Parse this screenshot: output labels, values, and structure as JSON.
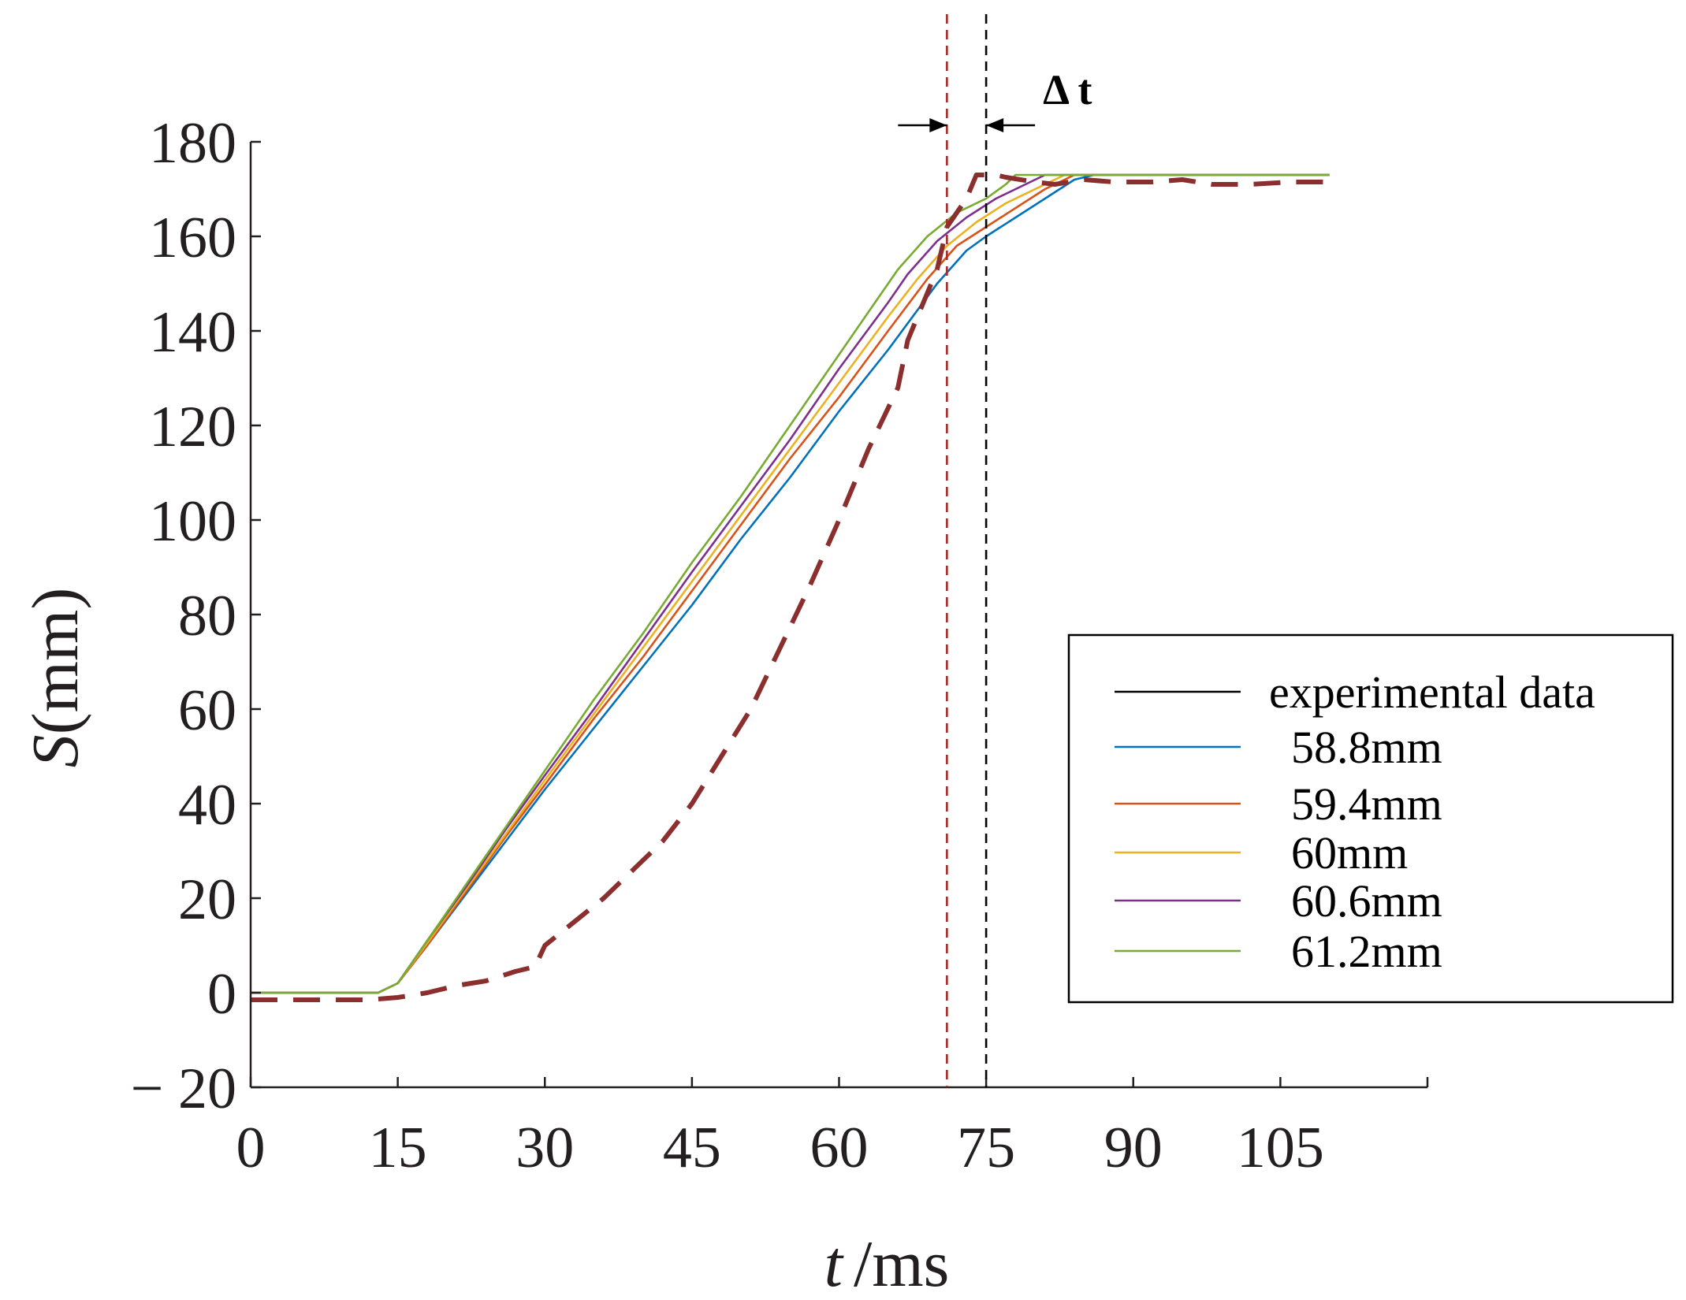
{
  "chart_data": {
    "type": "line",
    "title": "",
    "xlabel_var": "t",
    "xlabel_unit": "/ms",
    "ylabel_var": "S",
    "ylabel_unit": "(mm)",
    "xlim": [
      0,
      120
    ],
    "ylim": [
      -20,
      180
    ],
    "xticks": [
      0,
      15,
      30,
      45,
      60,
      75,
      90,
      105
    ],
    "yticks": [
      -20,
      0,
      20,
      40,
      60,
      80,
      100,
      120,
      140,
      160,
      180
    ],
    "ytick_labels": [
      "− 20",
      "0",
      "20",
      "40",
      "60",
      "80",
      "100",
      "120",
      "140",
      "160",
      "180"
    ],
    "legend_position": "right",
    "series": [
      {
        "name": "experimental data",
        "color": "#8b2e2e",
        "style": "dashed",
        "points": [
          [
            0,
            -1.5
          ],
          [
            6,
            -1.5
          ],
          [
            12,
            -1.5
          ],
          [
            15,
            -1
          ],
          [
            18,
            0
          ],
          [
            21,
            1.5
          ],
          [
            24,
            2.5
          ],
          [
            27,
            4.5
          ],
          [
            29,
            5.5
          ],
          [
            30,
            10
          ],
          [
            33,
            15
          ],
          [
            36,
            20
          ],
          [
            39,
            26
          ],
          [
            42,
            32
          ],
          [
            45,
            40
          ],
          [
            48,
            50
          ],
          [
            51,
            60
          ],
          [
            54,
            73
          ],
          [
            57,
            86
          ],
          [
            60,
            100
          ],
          [
            63,
            115
          ],
          [
            66,
            128
          ],
          [
            67,
            138
          ],
          [
            68,
            143
          ],
          [
            69,
            148
          ],
          [
            70,
            153
          ],
          [
            71,
            162
          ],
          [
            72,
            165
          ],
          [
            73,
            168
          ],
          [
            74,
            173
          ],
          [
            75,
            173
          ],
          [
            76,
            173
          ],
          [
            77,
            172.5
          ],
          [
            80,
            171.5
          ],
          [
            82,
            171
          ],
          [
            85,
            172
          ],
          [
            88,
            171.5
          ],
          [
            92,
            171.5
          ],
          [
            95,
            172
          ],
          [
            98,
            171
          ],
          [
            102,
            171
          ],
          [
            106,
            171.5
          ],
          [
            110,
            171.5
          ]
        ]
      },
      {
        "name": "58.8mm",
        "color": "#0072bd",
        "style": "solid",
        "points": [
          [
            0,
            0
          ],
          [
            6,
            0
          ],
          [
            13,
            0
          ],
          [
            15,
            2
          ],
          [
            18,
            10
          ],
          [
            22,
            21
          ],
          [
            26,
            32
          ],
          [
            30,
            43
          ],
          [
            35,
            56
          ],
          [
            40,
            69
          ],
          [
            45,
            82
          ],
          [
            50,
            96
          ],
          [
            55,
            109
          ],
          [
            60,
            123
          ],
          [
            65,
            136
          ],
          [
            70,
            150
          ],
          [
            73,
            157
          ],
          [
            75,
            160
          ],
          [
            78,
            164
          ],
          [
            81,
            168
          ],
          [
            84,
            172
          ],
          [
            86,
            173
          ],
          [
            90,
            173
          ],
          [
            95,
            173
          ],
          [
            100,
            173
          ],
          [
            105,
            173
          ],
          [
            110,
            173
          ]
        ]
      },
      {
        "name": "59.4mm",
        "color": "#d95319",
        "style": "solid",
        "points": [
          [
            0,
            0
          ],
          [
            6,
            0
          ],
          [
            13,
            0
          ],
          [
            15,
            2
          ],
          [
            18,
            10
          ],
          [
            22,
            21.5
          ],
          [
            26,
            33
          ],
          [
            30,
            44
          ],
          [
            35,
            58
          ],
          [
            40,
            71
          ],
          [
            45,
            85
          ],
          [
            50,
            99
          ],
          [
            55,
            113
          ],
          [
            60,
            126
          ],
          [
            65,
            140
          ],
          [
            69,
            151
          ],
          [
            72,
            158
          ],
          [
            75,
            162
          ],
          [
            78,
            166
          ],
          [
            81,
            170
          ],
          [
            84,
            173
          ],
          [
            86,
            173
          ],
          [
            90,
            173
          ],
          [
            95,
            173
          ],
          [
            100,
            173
          ],
          [
            105,
            173
          ],
          [
            110,
            173
          ]
        ]
      },
      {
        "name": "60mm",
        "color": "#edb120",
        "style": "solid",
        "points": [
          [
            0,
            0
          ],
          [
            6,
            0
          ],
          [
            13,
            0
          ],
          [
            15,
            2
          ],
          [
            18,
            10.5
          ],
          [
            22,
            22
          ],
          [
            26,
            33.5
          ],
          [
            30,
            45
          ],
          [
            35,
            59
          ],
          [
            40,
            73
          ],
          [
            45,
            87
          ],
          [
            50,
            101
          ],
          [
            55,
            115
          ],
          [
            60,
            129
          ],
          [
            65,
            143
          ],
          [
            68,
            151
          ],
          [
            71,
            158
          ],
          [
            74,
            163
          ],
          [
            77,
            167
          ],
          [
            80,
            170
          ],
          [
            83,
            173
          ],
          [
            86,
            173
          ],
          [
            90,
            173
          ],
          [
            95,
            173
          ],
          [
            100,
            173
          ],
          [
            105,
            173
          ],
          [
            110,
            173
          ]
        ]
      },
      {
        "name": "60.6mm",
        "color": "#7e2f8e",
        "style": "solid",
        "points": [
          [
            0,
            0
          ],
          [
            6,
            0
          ],
          [
            13,
            0
          ],
          [
            15,
            2
          ],
          [
            18,
            11
          ],
          [
            22,
            22.5
          ],
          [
            26,
            34.5
          ],
          [
            30,
            46
          ],
          [
            35,
            60
          ],
          [
            40,
            74.5
          ],
          [
            45,
            89
          ],
          [
            50,
            103
          ],
          [
            55,
            117
          ],
          [
            60,
            132
          ],
          [
            65,
            146
          ],
          [
            67,
            152
          ],
          [
            70,
            159
          ],
          [
            73,
            164
          ],
          [
            76,
            168
          ],
          [
            79,
            171
          ],
          [
            81,
            173
          ],
          [
            84,
            173
          ],
          [
            88,
            173
          ],
          [
            95,
            173
          ],
          [
            100,
            173
          ],
          [
            105,
            173
          ],
          [
            110,
            173
          ]
        ]
      },
      {
        "name": "61.2mm",
        "color": "#77ac30",
        "style": "solid",
        "points": [
          [
            0,
            0
          ],
          [
            6,
            0
          ],
          [
            13,
            0
          ],
          [
            15,
            2
          ],
          [
            18,
            11
          ],
          [
            22,
            23
          ],
          [
            26,
            35
          ],
          [
            30,
            47
          ],
          [
            35,
            62
          ],
          [
            40,
            76
          ],
          [
            45,
            91
          ],
          [
            50,
            105
          ],
          [
            55,
            120
          ],
          [
            60,
            135
          ],
          [
            63,
            144
          ],
          [
            66,
            153
          ],
          [
            69,
            160
          ],
          [
            72,
            165
          ],
          [
            75,
            168
          ],
          [
            77,
            171
          ],
          [
            78,
            173
          ],
          [
            82,
            173
          ],
          [
            88,
            173
          ],
          [
            95,
            173
          ],
          [
            100,
            173
          ],
          [
            105,
            173
          ],
          [
            110,
            173
          ]
        ]
      }
    ],
    "reference_lines": [
      {
        "name": "experimental-marker",
        "x": 71,
        "color": "#a52a2a",
        "style": "dashed"
      },
      {
        "name": "simulation-marker",
        "x": 75,
        "color": "#000000",
        "style": "dashed"
      }
    ],
    "annotation": {
      "label": "Δ t",
      "y": 183.5,
      "x_from": 71,
      "x_to": 75
    }
  }
}
